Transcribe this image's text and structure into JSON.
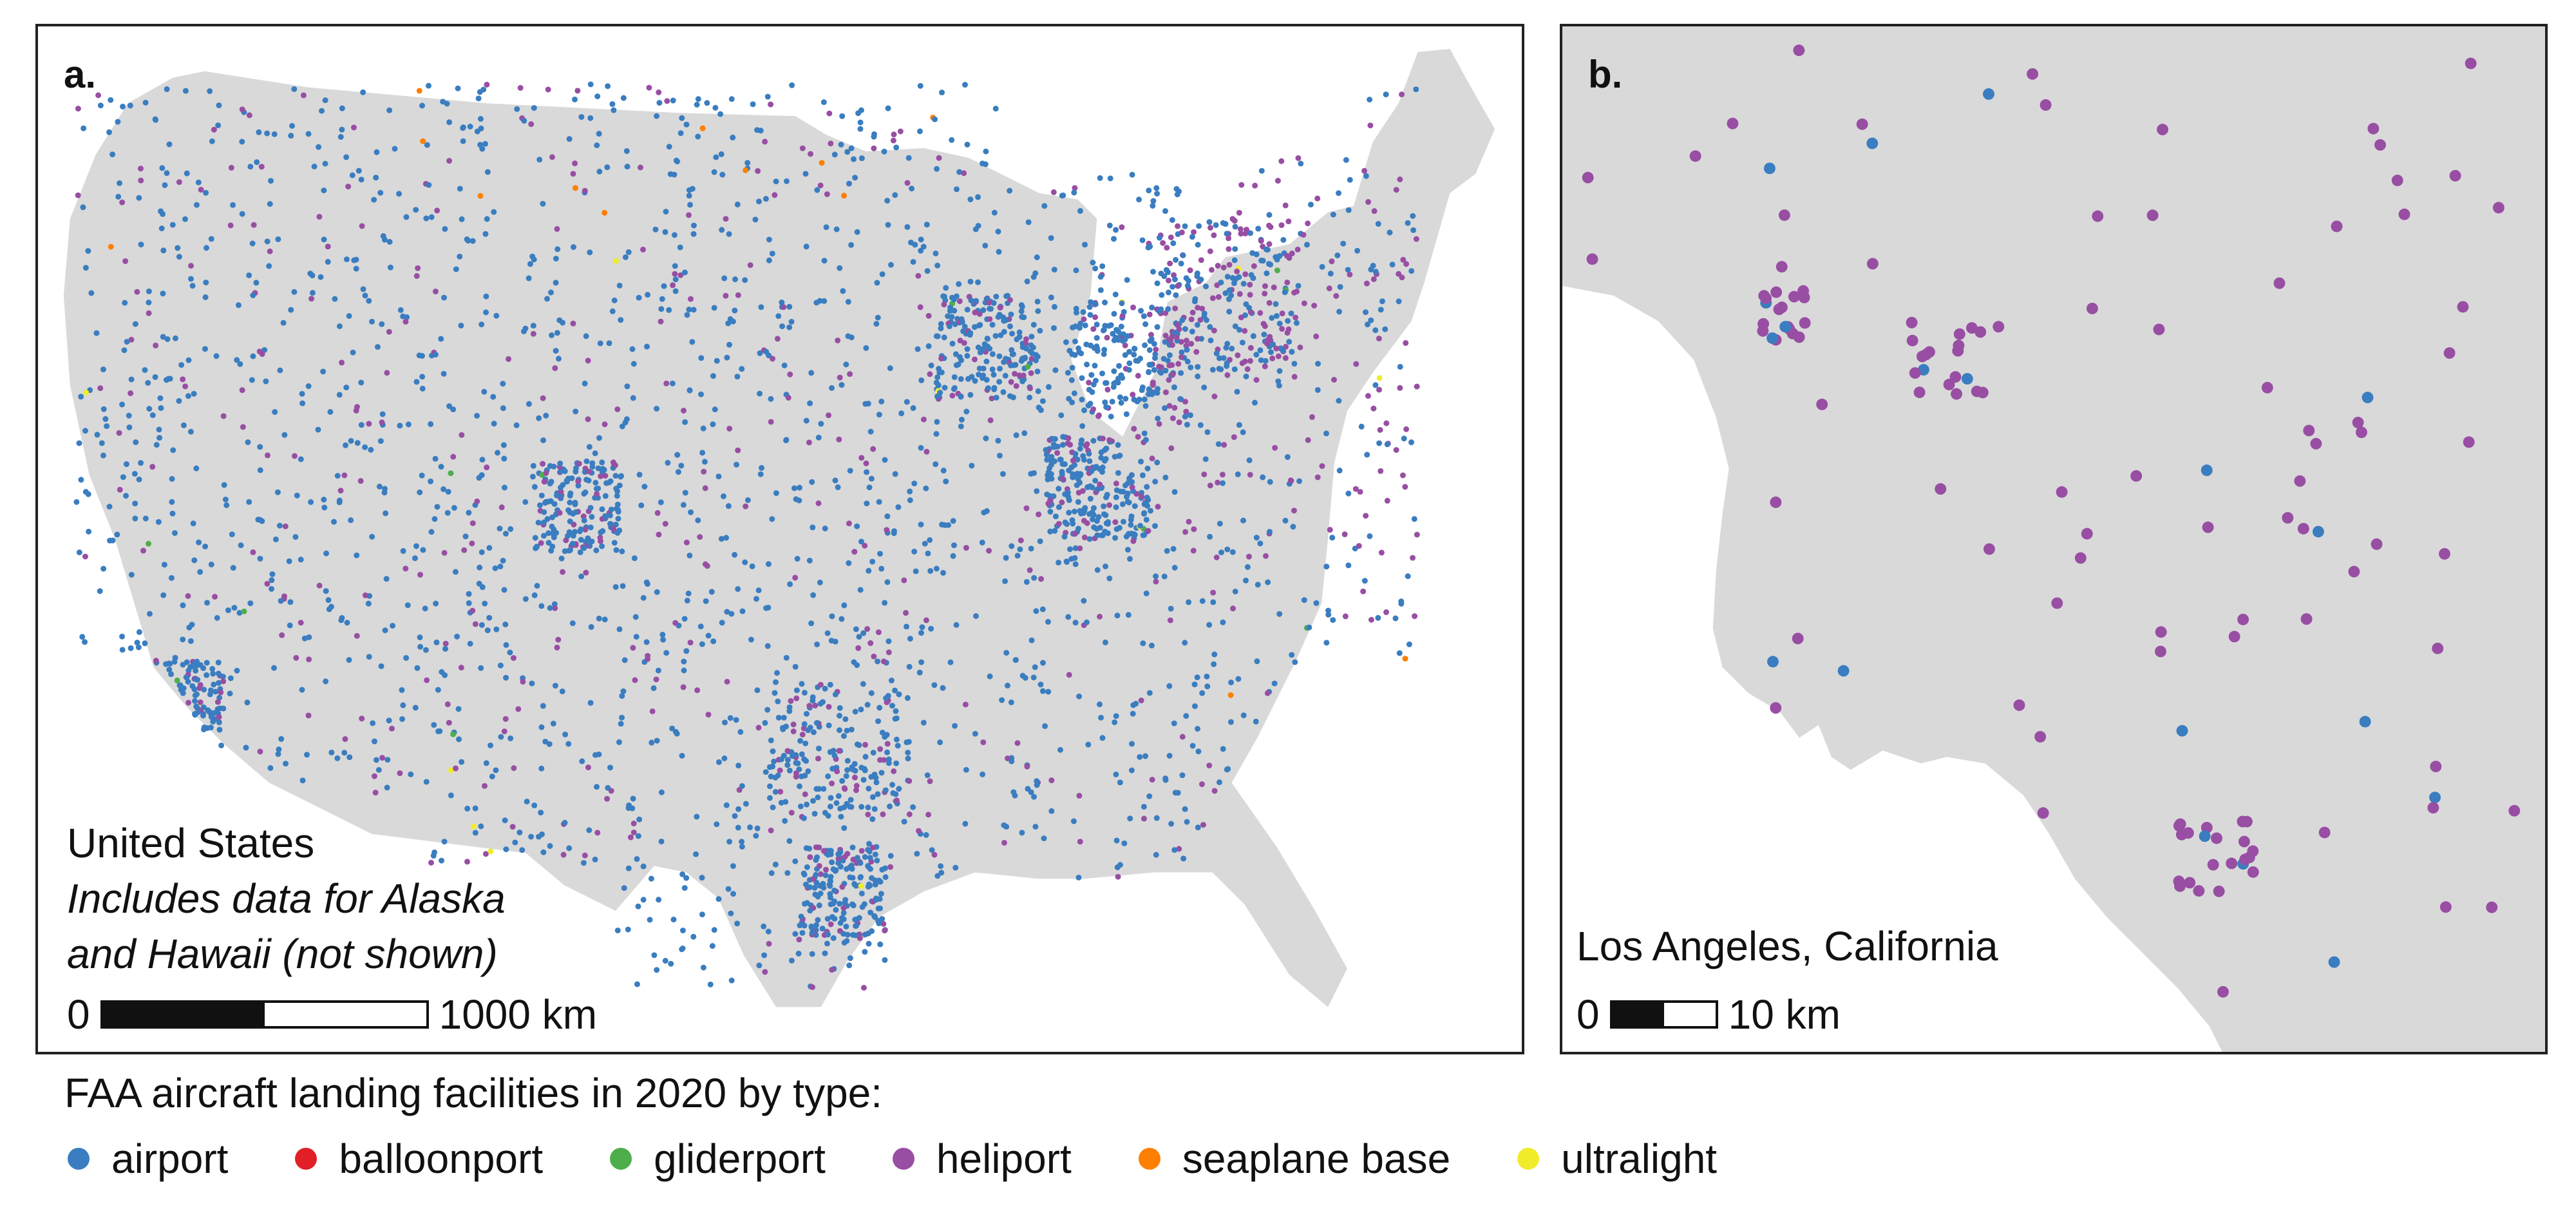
{
  "panel_a": {
    "label": "a.",
    "region": "United States",
    "note_line1": "Includes data for Alaska",
    "note_line2": "and Hawaii (not shown)",
    "scale_start": "0",
    "scale_end": "1000 km"
  },
  "panel_b": {
    "label": "b.",
    "region": "Los Angeles, California",
    "scale_start": "0",
    "scale_end": "10 km"
  },
  "legend": {
    "title": "FAA aircraft landing facilities in 2020 by type:",
    "items": [
      {
        "label": "airport",
        "color": "#3a7dc0"
      },
      {
        "label": "balloonport",
        "color": "#e11f26"
      },
      {
        "label": "gliderport",
        "color": "#4eae4b"
      },
      {
        "label": "heliport",
        "color": "#984ea3"
      },
      {
        "label": "seaplane base",
        "color": "#ff7f00"
      },
      {
        "label": "ultralight",
        "color": "#f0ec2b"
      }
    ]
  },
  "map_colors": {
    "land": "#d9d9d9",
    "water": "#ffffff"
  }
}
